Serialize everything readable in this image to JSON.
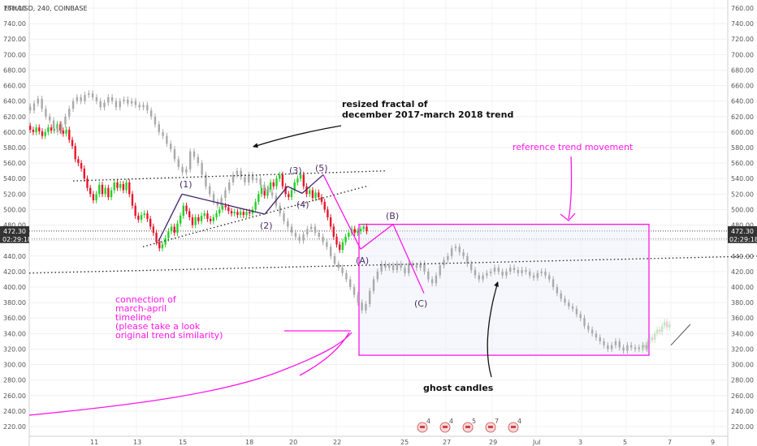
{
  "header": {
    "title": "ETH/USD, 240, COINBASE"
  },
  "chart_data": {
    "type": "candlestick",
    "symbol": "ETH/USD",
    "interval": "240",
    "exchange": "COINBASE",
    "ylim": [
      215,
      765
    ],
    "yticks": [
      760,
      740,
      720,
      700,
      680,
      660,
      640,
      620,
      600,
      580,
      560,
      540,
      520,
      500,
      480,
      460,
      440,
      420,
      400,
      380,
      360,
      340,
      320,
      300,
      280,
      260,
      240,
      220
    ],
    "xticks": [
      "11",
      "13",
      "15",
      "18",
      "20",
      "22",
      "25",
      "27",
      "29",
      "Jul",
      "3",
      "5",
      "7",
      "9"
    ],
    "price_label": "472.30",
    "time_label": "02:29:18",
    "price_level": 472.3,
    "time_level": 462,
    "real_candles": [
      [
        608,
        603
      ],
      [
        603,
        600
      ],
      [
        600,
        606
      ],
      [
        606,
        601
      ],
      [
        601,
        595
      ],
      [
        595,
        600
      ],
      [
        600,
        606
      ],
      [
        606,
        602
      ],
      [
        602,
        604
      ],
      [
        604,
        610
      ],
      [
        610,
        602
      ],
      [
        602,
        598
      ],
      [
        598,
        603
      ],
      [
        603,
        590
      ],
      [
        590,
        582
      ],
      [
        582,
        565
      ],
      [
        565,
        560
      ],
      [
        560,
        553
      ],
      [
        553,
        540
      ],
      [
        540,
        528
      ],
      [
        528,
        520
      ],
      [
        520,
        512
      ],
      [
        512,
        520
      ],
      [
        520,
        532
      ],
      [
        532,
        520
      ],
      [
        520,
        528
      ],
      [
        528,
        516
      ],
      [
        516,
        525
      ],
      [
        525,
        535
      ],
      [
        535,
        528
      ],
      [
        528,
        533
      ],
      [
        533,
        525
      ],
      [
        525,
        535
      ],
      [
        535,
        520
      ],
      [
        520,
        505
      ],
      [
        505,
        492
      ],
      [
        492,
        487
      ],
      [
        487,
        493
      ],
      [
        493,
        495
      ],
      [
        495,
        488
      ],
      [
        488,
        478
      ],
      [
        478,
        470
      ],
      [
        470,
        458
      ],
      [
        458,
        450
      ],
      [
        450,
        455
      ],
      [
        455,
        463
      ],
      [
        463,
        472
      ],
      [
        472,
        478
      ],
      [
        478,
        470
      ],
      [
        470,
        482
      ],
      [
        482,
        492
      ],
      [
        492,
        505
      ],
      [
        505,
        498
      ],
      [
        498,
        490
      ],
      [
        490,
        480
      ],
      [
        480,
        490
      ],
      [
        490,
        485
      ],
      [
        485,
        492
      ],
      [
        492,
        495
      ],
      [
        495,
        488
      ],
      [
        488,
        485
      ],
      [
        485,
        490
      ],
      [
        490,
        495
      ],
      [
        495,
        500
      ],
      [
        500,
        505
      ],
      [
        505,
        503
      ],
      [
        503,
        498
      ],
      [
        498,
        495
      ],
      [
        495,
        497
      ],
      [
        497,
        493
      ],
      [
        493,
        497
      ],
      [
        497,
        493
      ],
      [
        493,
        497
      ],
      [
        497,
        495
      ],
      [
        495,
        500
      ],
      [
        500,
        510
      ],
      [
        510,
        520
      ],
      [
        520,
        528
      ],
      [
        528,
        518
      ],
      [
        518,
        526
      ],
      [
        526,
        535
      ],
      [
        535,
        530
      ],
      [
        530,
        540
      ],
      [
        540,
        545
      ],
      [
        545,
        530
      ],
      [
        530,
        520
      ],
      [
        520,
        516
      ],
      [
        516,
        525
      ],
      [
        525,
        535
      ],
      [
        535,
        540
      ],
      [
        540,
        545
      ],
      [
        545,
        530
      ],
      [
        530,
        520
      ],
      [
        520,
        525
      ],
      [
        525,
        515
      ],
      [
        515,
        522
      ],
      [
        522,
        516
      ],
      [
        516,
        510
      ],
      [
        510,
        500
      ],
      [
        500,
        490
      ],
      [
        490,
        478
      ],
      [
        478,
        465
      ],
      [
        465,
        455
      ],
      [
        455,
        448
      ],
      [
        448,
        458
      ],
      [
        458,
        465
      ],
      [
        465,
        470
      ],
      [
        470,
        475
      ],
      [
        475,
        470
      ],
      [
        470,
        472
      ],
      [
        472,
        475
      ],
      [
        475,
        478
      ],
      [
        478,
        472
      ]
    ],
    "ghost_candles": [
      [
        633,
        628
      ],
      [
        628,
        637
      ],
      [
        637,
        643
      ],
      [
        643,
        630
      ],
      [
        630,
        620
      ],
      [
        620,
        615
      ],
      [
        615,
        605
      ],
      [
        605,
        600
      ],
      [
        600,
        610
      ],
      [
        610,
        620
      ],
      [
        620,
        630
      ],
      [
        630,
        640
      ],
      [
        640,
        645
      ],
      [
        645,
        640
      ],
      [
        640,
        648
      ],
      [
        648,
        650
      ],
      [
        650,
        645
      ],
      [
        645,
        640
      ],
      [
        640,
        632
      ],
      [
        632,
        638
      ],
      [
        638,
        645
      ],
      [
        645,
        640
      ],
      [
        640,
        632
      ],
      [
        632,
        640
      ],
      [
        640,
        642
      ],
      [
        642,
        637
      ],
      [
        637,
        640
      ],
      [
        640,
        635
      ],
      [
        635,
        632
      ],
      [
        632,
        635
      ],
      [
        635,
        628
      ],
      [
        628,
        620
      ],
      [
        620,
        610
      ],
      [
        610,
        600
      ],
      [
        600,
        595
      ],
      [
        595,
        585
      ],
      [
        585,
        578
      ],
      [
        578,
        565
      ],
      [
        565,
        555
      ],
      [
        555,
        548
      ],
      [
        548,
        552
      ],
      [
        552,
        575
      ],
      [
        575,
        568
      ],
      [
        568,
        560
      ],
      [
        560,
        545
      ],
      [
        545,
        530
      ],
      [
        530,
        520
      ],
      [
        520,
        510
      ],
      [
        510,
        505
      ],
      [
        505,
        515
      ],
      [
        515,
        525
      ],
      [
        525,
        535
      ],
      [
        535,
        545
      ],
      [
        545,
        550
      ],
      [
        550,
        542
      ],
      [
        542,
        535
      ],
      [
        535,
        545
      ],
      [
        545,
        538
      ],
      [
        538,
        540
      ],
      [
        540,
        532
      ],
      [
        532,
        528
      ],
      [
        528,
        522
      ],
      [
        522,
        518
      ],
      [
        518,
        505
      ],
      [
        505,
        495
      ],
      [
        495,
        485
      ],
      [
        485,
        478
      ],
      [
        478,
        470
      ],
      [
        470,
        465
      ],
      [
        465,
        460
      ],
      [
        460,
        468
      ],
      [
        468,
        475
      ],
      [
        475,
        478
      ],
      [
        478,
        470
      ],
      [
        470,
        465
      ],
      [
        465,
        458
      ],
      [
        458,
        452
      ],
      [
        452,
        440
      ],
      [
        440,
        430
      ],
      [
        430,
        425
      ],
      [
        425,
        418
      ],
      [
        418,
        410
      ],
      [
        410,
        400
      ],
      [
        400,
        390
      ],
      [
        390,
        380
      ],
      [
        380,
        370
      ],
      [
        370,
        378
      ],
      [
        378,
        395
      ],
      [
        395,
        410
      ],
      [
        410,
        420
      ],
      [
        420,
        430
      ],
      [
        430,
        425
      ],
      [
        425,
        428
      ],
      [
        428,
        422
      ],
      [
        422,
        430
      ],
      [
        430,
        425
      ],
      [
        425,
        418
      ],
      [
        418,
        430
      ],
      [
        430,
        428
      ],
      [
        428,
        425
      ],
      [
        425,
        430
      ],
      [
        430,
        420
      ],
      [
        420,
        410
      ],
      [
        410,
        405
      ],
      [
        405,
        415
      ],
      [
        415,
        428
      ],
      [
        428,
        435
      ],
      [
        435,
        440
      ],
      [
        440,
        450
      ],
      [
        450,
        452
      ],
      [
        452,
        445
      ],
      [
        445,
        440
      ],
      [
        440,
        430
      ],
      [
        430,
        422
      ],
      [
        422,
        415
      ],
      [
        415,
        410
      ],
      [
        410,
        415
      ],
      [
        415,
        418
      ],
      [
        418,
        420
      ],
      [
        420,
        425
      ],
      [
        425,
        420
      ],
      [
        420,
        415
      ],
      [
        415,
        420
      ],
      [
        420,
        425
      ],
      [
        425,
        422
      ],
      [
        422,
        418
      ],
      [
        418,
        422
      ],
      [
        422,
        420
      ],
      [
        420,
        415
      ],
      [
        415,
        412
      ],
      [
        412,
        418
      ],
      [
        418,
        420
      ],
      [
        420,
        415
      ],
      [
        415,
        410
      ],
      [
        410,
        400
      ],
      [
        400,
        392
      ],
      [
        392,
        385
      ],
      [
        385,
        380
      ],
      [
        380,
        375
      ],
      [
        375,
        372
      ],
      [
        372,
        365
      ],
      [
        365,
        360
      ],
      [
        360,
        350
      ],
      [
        350,
        345
      ],
      [
        345,
        340
      ],
      [
        340,
        335
      ],
      [
        335,
        330
      ],
      [
        330,
        325
      ],
      [
        325,
        320
      ],
      [
        320,
        325
      ],
      [
        325,
        330
      ],
      [
        330,
        322
      ],
      [
        322,
        318
      ],
      [
        318,
        325
      ],
      [
        325,
        322
      ],
      [
        322,
        320
      ],
      [
        320,
        322
      ],
      [
        322,
        325
      ],
      [
        325,
        320
      ]
    ],
    "faint_candles": [
      [
        318,
        325
      ],
      [
        325,
        322
      ],
      [
        322,
        330
      ],
      [
        330,
        335
      ],
      [
        335,
        332
      ],
      [
        332,
        340
      ],
      [
        340,
        345
      ],
      [
        345,
        342
      ],
      [
        342,
        350
      ],
      [
        350,
        355
      ],
      [
        355,
        348
      ],
      [
        348,
        352
      ]
    ],
    "event_badges": [
      "4",
      "4",
      "5",
      "7",
      "4"
    ],
    "annotations": {
      "fractal_line1": "resized fractal of",
      "fractal_line2": "december 2017-march 2018 trend",
      "reference": "reference trend movement",
      "connection": [
        "connection of",
        "march-april",
        "timeline",
        "(please take a look",
        "original trend similarity)"
      ],
      "ghost": "ghost candles"
    },
    "waves": [
      "(1)",
      "(2)",
      "(3)",
      "(4)",
      "(5)",
      "(A)",
      "(B)",
      "(C)"
    ],
    "trendlines": {
      "upper_dotted": {
        "from": [
          "10",
          537
        ],
        "to": [
          "24",
          550
        ]
      },
      "lower_dotted": {
        "from": [
          "14",
          452
        ],
        "to": [
          "23",
          531
        ]
      },
      "long_dotted": {
        "from": [
          "7 (prior)",
          418
        ],
        "to": [
          "9",
          440
        ]
      }
    },
    "box": {
      "x_from": "22",
      "x_to": "6",
      "price_top": 481,
      "price_bottom": 312
    }
  },
  "colors": {
    "up": "#26d026",
    "down": "#e8162c",
    "ghost": "#aaaaaa",
    "accent": "#ff16e8",
    "wave": "#3f1e6e",
    "label_bg": "#333333"
  }
}
